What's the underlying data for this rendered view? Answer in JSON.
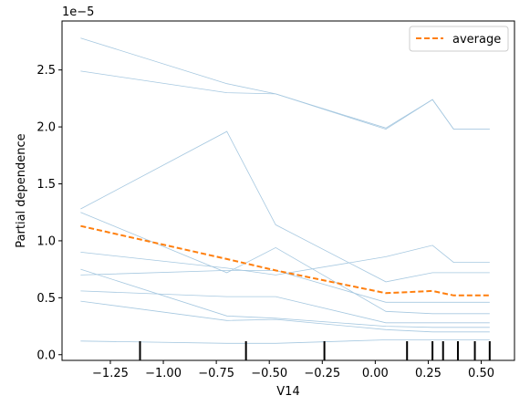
{
  "chart_data": {
    "type": "line",
    "xlabel": "V14",
    "ylabel": "Partial dependence",
    "y_offset_label": "1e−5",
    "xlim": [
      -1.478,
      0.657
    ],
    "ylim": [
      -0.05,
      2.93
    ],
    "y_multiplier": 1e-05,
    "x_ticks": [
      -1.25,
      -1.0,
      -0.75,
      -0.5,
      -0.25,
      0.0,
      0.25,
      0.5
    ],
    "x_tick_labels": [
      "−1.25",
      "−1.00",
      "−0.75",
      "−0.50",
      "−0.25",
      "0.00",
      "0.25",
      "0.50"
    ],
    "y_ticks": [
      0.0,
      0.5,
      1.0,
      1.5,
      2.0,
      2.5
    ],
    "y_tick_labels": [
      "0.0",
      "0.5",
      "1.0",
      "1.5",
      "2.0",
      "2.5"
    ],
    "grid": false,
    "legend_position": "top-right",
    "x": [
      -1.39,
      -0.7,
      -0.47,
      0.05,
      0.27,
      0.37,
      0.54
    ],
    "ice_color": "#a6c8e0",
    "ice_curves": [
      [
        2.78,
        2.38,
        2.29,
        1.99,
        2.24,
        1.98,
        1.98
      ],
      [
        2.49,
        2.3,
        2.29,
        1.98,
        2.24,
        1.98,
        1.98
      ],
      [
        1.28,
        1.96,
        1.14,
        0.64,
        0.72,
        0.72,
        0.72
      ],
      [
        1.25,
        0.72,
        0.94,
        0.38,
        0.36,
        0.36,
        0.36
      ],
      [
        0.9,
        0.76,
        0.7,
        0.86,
        0.96,
        0.81,
        0.81
      ],
      [
        0.75,
        0.34,
        0.32,
        0.25,
        0.24,
        0.24,
        0.24
      ],
      [
        0.7,
        0.74,
        0.74,
        0.46,
        0.46,
        0.46,
        0.46
      ],
      [
        0.56,
        0.51,
        0.51,
        0.28,
        0.28,
        0.28,
        0.28
      ],
      [
        0.47,
        0.3,
        0.31,
        0.22,
        0.2,
        0.2,
        0.2
      ],
      [
        0.12,
        0.1,
        0.1,
        0.13,
        0.13,
        0.13,
        0.13
      ]
    ],
    "series": [
      {
        "name": "average",
        "color": "#ff7f0e",
        "dashed": true,
        "values": [
          1.13,
          0.84,
          0.74,
          0.54,
          0.56,
          0.52,
          0.52
        ]
      }
    ],
    "rug_x": [
      -1.11,
      -0.61,
      -0.24,
      0.15,
      0.27,
      0.32,
      0.39,
      0.47,
      0.54
    ]
  }
}
